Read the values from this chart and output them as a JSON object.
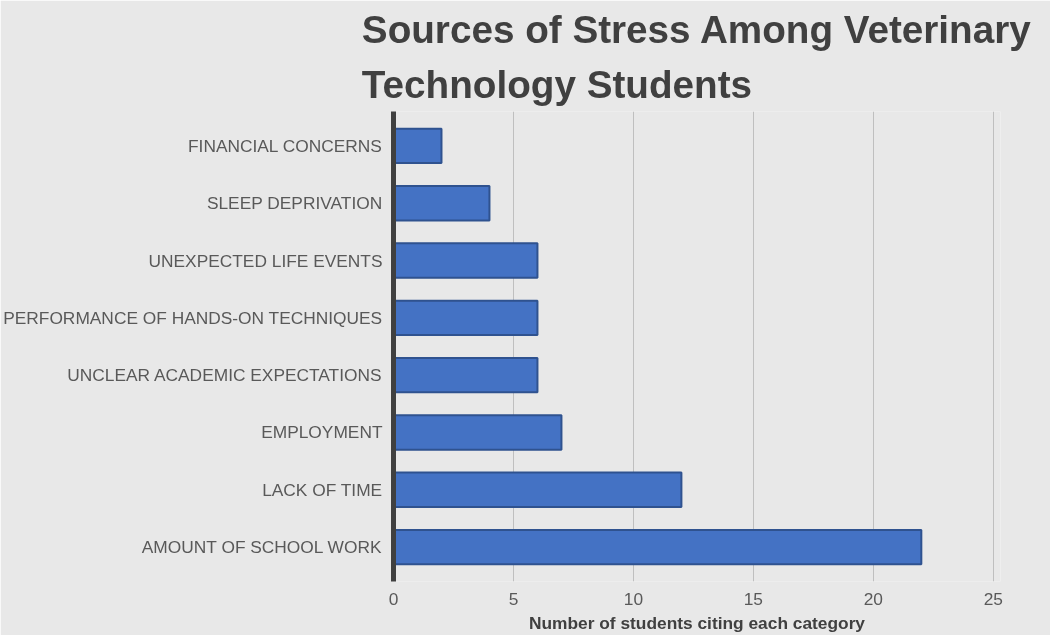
{
  "chart_data": {
    "type": "bar",
    "orientation": "horizontal",
    "title": "Sources of Stress Among Veterinary Technology Students",
    "xlabel": "Number of students citing each category",
    "categories": [
      "FINANCIAL CONCERNS",
      "SLEEP DEPRIVATION",
      "UNEXPECTED LIFE EVENTS",
      "PERFORMANCE OF HANDS-ON TECHNIQUES",
      "UNCLEAR ACADEMIC EXPECTATIONS",
      "EMPLOYMENT",
      "LACK OF TIME",
      "AMOUNT OF SCHOOL WORK"
    ],
    "values": [
      2,
      4,
      6,
      6,
      6,
      7,
      12,
      22
    ],
    "color": "#4472c4",
    "xlim": [
      0,
      25
    ],
    "xticks": [
      0,
      5,
      10,
      15,
      20,
      25
    ],
    "grid": "x"
  }
}
